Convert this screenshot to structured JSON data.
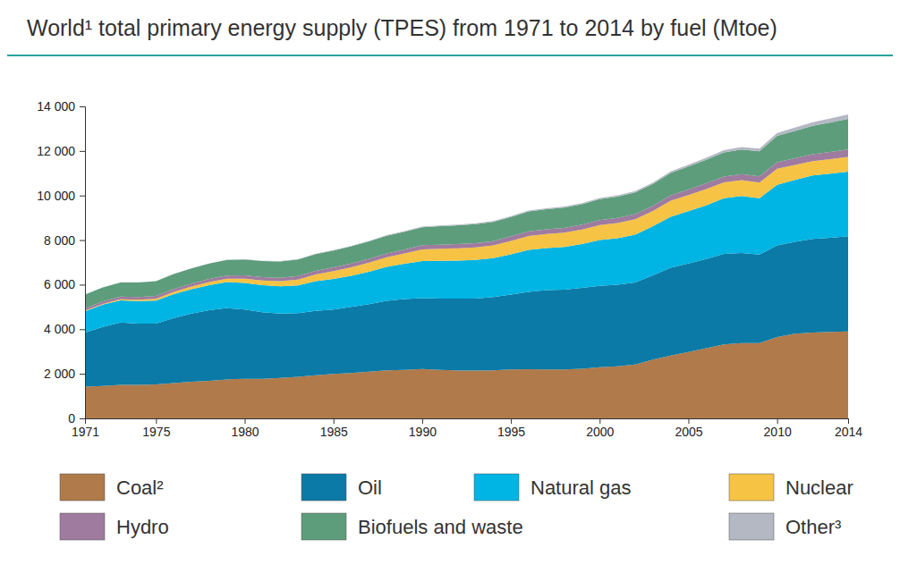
{
  "chart_data": {
    "type": "area",
    "title": "World¹ total primary energy supply (TPES) from 1971 to 2014 by fuel (Mtoe)",
    "stacked": true,
    "grid": false,
    "legend": "bottom",
    "x": [
      1971,
      1972,
      1973,
      1974,
      1975,
      1976,
      1977,
      1978,
      1979,
      1980,
      1981,
      1982,
      1983,
      1984,
      1985,
      1986,
      1987,
      1988,
      1989,
      1990,
      1991,
      1992,
      1993,
      1994,
      1995,
      1996,
      1997,
      1998,
      1999,
      2000,
      2001,
      2002,
      2003,
      2004,
      2005,
      2006,
      2007,
      2008,
      2009,
      2010,
      2011,
      2012,
      2013,
      2014
    ],
    "xlim": [
      1971,
      2014
    ],
    "xticks": [
      1971,
      1975,
      1980,
      1985,
      1990,
      1995,
      2000,
      2005,
      2010,
      2014
    ],
    "ylim": [
      0,
      14000
    ],
    "yticks": [
      0,
      {
        "value": 2000,
        "label": "2 000"
      },
      {
        "value": 4000,
        "label": "4 000"
      },
      {
        "value": 6000,
        "label": "6 000"
      },
      {
        "value": 8000,
        "label": "8 000"
      },
      {
        "value": 10000,
        "label": "10 000"
      },
      {
        "value": 12000,
        "label": "12 000"
      },
      {
        "value": 14000,
        "label": "14 000"
      }
    ],
    "series": [
      {
        "name": "Coal²",
        "color": "#b07a4a",
        "values": [
          1420,
          1450,
          1500,
          1500,
          1520,
          1580,
          1640,
          1680,
          1750,
          1780,
          1780,
          1820,
          1870,
          1940,
          2000,
          2040,
          2100,
          2160,
          2180,
          2220,
          2180,
          2150,
          2150,
          2160,
          2200,
          2210,
          2200,
          2200,
          2230,
          2300,
          2340,
          2420,
          2640,
          2820,
          2980,
          3150,
          3320,
          3380,
          3380,
          3650,
          3800,
          3850,
          3880,
          3900
        ]
      },
      {
        "name": "Oil",
        "color": "#0b7aa6",
        "values": [
          2430,
          2650,
          2800,
          2750,
          2730,
          2920,
          3060,
          3170,
          3200,
          3100,
          2980,
          2880,
          2850,
          2880,
          2880,
          2960,
          3020,
          3120,
          3180,
          3180,
          3200,
          3230,
          3230,
          3290,
          3360,
          3470,
          3560,
          3580,
          3630,
          3650,
          3660,
          3680,
          3780,
          3940,
          3970,
          4000,
          4060,
          4040,
          3970,
          4110,
          4120,
          4200,
          4220,
          4270
        ]
      },
      {
        "name": "Natural gas",
        "color": "#00b4e3",
        "values": [
          950,
          1000,
          1000,
          1020,
          1040,
          1080,
          1100,
          1130,
          1170,
          1200,
          1220,
          1230,
          1250,
          1340,
          1380,
          1400,
          1460,
          1520,
          1580,
          1660,
          1690,
          1700,
          1730,
          1740,
          1800,
          1880,
          1880,
          1910,
          1960,
          2050,
          2080,
          2140,
          2200,
          2290,
          2350,
          2410,
          2500,
          2560,
          2530,
          2720,
          2780,
          2850,
          2880,
          2900
        ]
      },
      {
        "name": "Nuclear",
        "color": "#f6c344",
        "values": [
          30,
          35,
          50,
          60,
          80,
          100,
          120,
          140,
          150,
          190,
          210,
          230,
          260,
          300,
          350,
          380,
          410,
          430,
          460,
          525,
          540,
          550,
          560,
          570,
          600,
          620,
          630,
          640,
          650,
          675,
          690,
          700,
          690,
          720,
          720,
          730,
          710,
          710,
          700,
          720,
          670,
          640,
          650,
          660
        ]
      },
      {
        "name": "Hydro",
        "color": "#9f7b9f",
        "values": [
          105,
          110,
          112,
          118,
          123,
          128,
          130,
          135,
          140,
          147,
          150,
          152,
          157,
          162,
          165,
          168,
          170,
          175,
          176,
          184,
          186,
          190,
          195,
          195,
          210,
          212,
          215,
          218,
          220,
          225,
          222,
          225,
          228,
          240,
          250,
          260,
          265,
          275,
          278,
          295,
          300,
          315,
          325,
          335
        ]
      },
      {
        "name": "Biofuels and waste",
        "color": "#5d9d7c",
        "values": [
          620,
          630,
          640,
          650,
          660,
          670,
          680,
          690,
          700,
          710,
          720,
          730,
          740,
          750,
          760,
          770,
          780,
          790,
          800,
          810,
          830,
          840,
          850,
          860,
          870,
          890,
          900,
          910,
          920,
          940,
          960,
          970,
          980,
          1000,
          1030,
          1050,
          1080,
          1100,
          1130,
          1180,
          1230,
          1270,
          1320,
          1370
        ]
      },
      {
        "name": "Other³",
        "color": "#b3b8c3",
        "values": [
          6,
          6,
          6,
          7,
          7,
          8,
          8,
          9,
          10,
          12,
          13,
          14,
          16,
          18,
          20,
          22,
          24,
          26,
          28,
          30,
          32,
          34,
          36,
          38,
          40,
          42,
          44,
          46,
          48,
          52,
          55,
          60,
          65,
          70,
          80,
          90,
          100,
          110,
          120,
          135,
          150,
          165,
          185,
          205
        ]
      }
    ]
  }
}
